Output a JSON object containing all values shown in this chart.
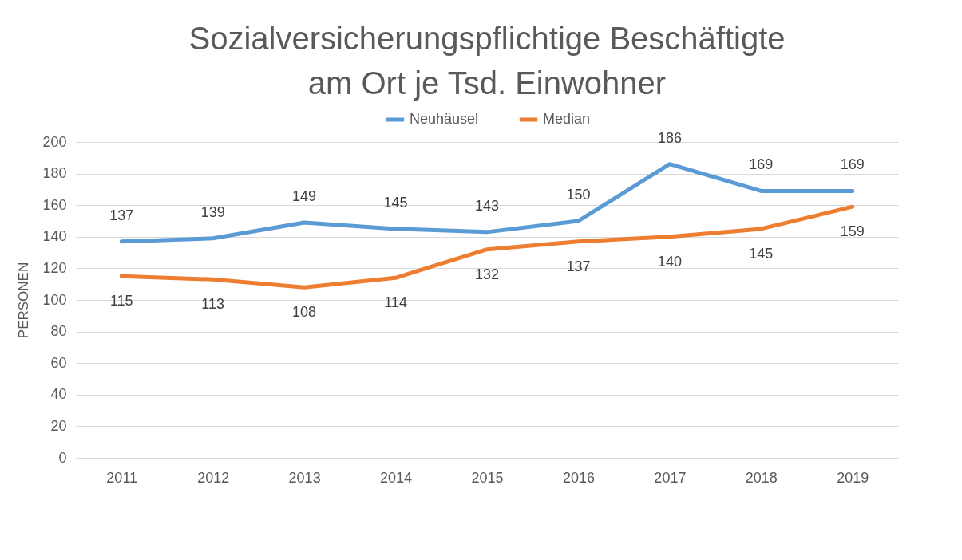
{
  "chart_data": {
    "type": "line",
    "title": "Sozialversicherungspflichtige Beschäftigte am Ort je Tsd. Einwohner",
    "ylabel": "PERSONEN",
    "categories": [
      "2011",
      "2012",
      "2013",
      "2014",
      "2015",
      "2016",
      "2017",
      "2018",
      "2019"
    ],
    "series": [
      {
        "name": "Neuhäusel",
        "color": "#5b9bd5",
        "values": [
          137,
          139,
          149,
          145,
          143,
          150,
          186,
          169,
          169
        ]
      },
      {
        "name": "Median",
        "color": "#ed7d31",
        "values": [
          115,
          113,
          108,
          114,
          132,
          137,
          140,
          145,
          159
        ]
      }
    ],
    "ylim": [
      0,
      200
    ],
    "yticks": [
      0,
      20,
      40,
      60,
      80,
      100,
      120,
      140,
      160,
      180,
      200
    ],
    "grid": "y",
    "legend": "top",
    "data_labels": true,
    "marker": "none",
    "line_style": "solid"
  }
}
